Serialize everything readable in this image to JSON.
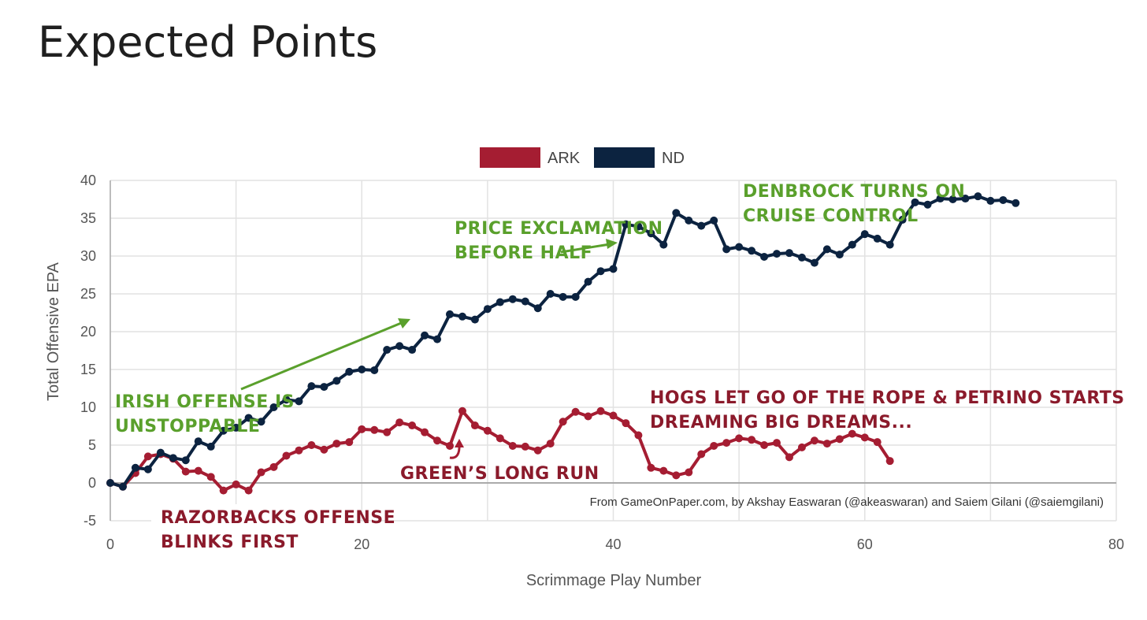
{
  "title": "Expected Points",
  "colors": {
    "ark": "#a51d32",
    "nd": "#0c2340",
    "grid": "#e2e2e2",
    "zero": "#aaaaaa",
    "annotation_green": "#5aa02c",
    "annotation_red": "#8b1a2b"
  },
  "chart_data": {
    "type": "line",
    "xlabel": "Scrimmage Play Number",
    "ylabel": "Total Offensive EPA",
    "xlim": [
      0,
      80
    ],
    "ylim": [
      -5,
      40
    ],
    "x_ticks": [
      0,
      20,
      40,
      60,
      80
    ],
    "y_ticks": [
      -5,
      0,
      5,
      10,
      15,
      20,
      25,
      30,
      35,
      40
    ],
    "legend": [
      "ARK",
      "ND"
    ],
    "legend_position": "top-center",
    "credit": "From GameOnPaper.com, by Akshay Easwaran (@akeaswaran) and Saiem Gilani (@saiemgilani)",
    "series": [
      {
        "name": "ARK",
        "color": "#a51d32",
        "values": [
          0,
          -0.5,
          1.3,
          3.5,
          3.8,
          3.2,
          1.5,
          1.6,
          0.8,
          -1.0,
          -0.2,
          -1.0,
          1.4,
          2.1,
          3.6,
          4.3,
          5.0,
          4.4,
          5.2,
          5.4,
          7.1,
          7.0,
          6.7,
          8.0,
          7.6,
          6.7,
          5.6,
          4.9,
          9.5,
          7.6,
          6.9,
          5.9,
          4.9,
          4.8,
          4.3,
          5.2,
          8.1,
          9.4,
          8.8,
          9.5,
          8.9,
          7.9,
          6.3,
          2.0,
          1.6,
          1.0,
          1.4,
          3.8,
          4.9,
          5.3,
          5.9,
          5.7,
          5.0,
          5.3,
          3.4,
          4.7,
          5.6,
          5.2,
          5.8,
          6.5,
          6.0,
          5.4,
          2.9
        ]
      },
      {
        "name": "ND",
        "color": "#0c2340",
        "values": [
          0,
          -0.5,
          2.0,
          1.8,
          4.0,
          3.3,
          3.0,
          5.5,
          4.8,
          6.9,
          7.3,
          8.6,
          8.1,
          10.0,
          11.0,
          10.8,
          12.8,
          12.7,
          13.5,
          14.7,
          15.0,
          14.9,
          17.6,
          18.1,
          17.6,
          19.5,
          19.0,
          22.3,
          22.0,
          21.6,
          23.0,
          23.9,
          24.3,
          24.0,
          23.1,
          25.0,
          24.6,
          24.6,
          26.6,
          28.0,
          28.3,
          34.2,
          33.9,
          33.0,
          31.5,
          35.7,
          34.7,
          34.0,
          34.7,
          30.9,
          31.2,
          30.7,
          29.9,
          30.3,
          30.4,
          29.8,
          29.1,
          30.9,
          30.2,
          31.5,
          32.9,
          32.3,
          31.5,
          34.8,
          37.1,
          36.8,
          37.6,
          37.5,
          37.6,
          37.9,
          37.3,
          37.4,
          37.0
        ]
      }
    ],
    "annotations": [
      {
        "id": "irish",
        "lines": [
          "IRISH OFFENSE IS",
          "UNSTOPPABLE"
        ],
        "color": "green"
      },
      {
        "id": "price",
        "lines": [
          "PRICE EXCLAMATION",
          "BEFORE HALF"
        ],
        "color": "green"
      },
      {
        "id": "denbrock",
        "lines": [
          "DENBROCK TURNS ON",
          "CRUISE CONTROL"
        ],
        "color": "green"
      },
      {
        "id": "hogs",
        "lines": [
          "HOGS LET GO OF THE ROPE & PETRINO STARTS",
          "DREAMING BIG DREAMS..."
        ],
        "color": "red"
      },
      {
        "id": "green",
        "lines": [
          "GREEN’S LONG RUN"
        ],
        "color": "red"
      },
      {
        "id": "razorbacks",
        "lines": [
          "RAZORBACKS OFFENSE",
          "BLINKS FIRST"
        ],
        "color": "red"
      }
    ]
  }
}
